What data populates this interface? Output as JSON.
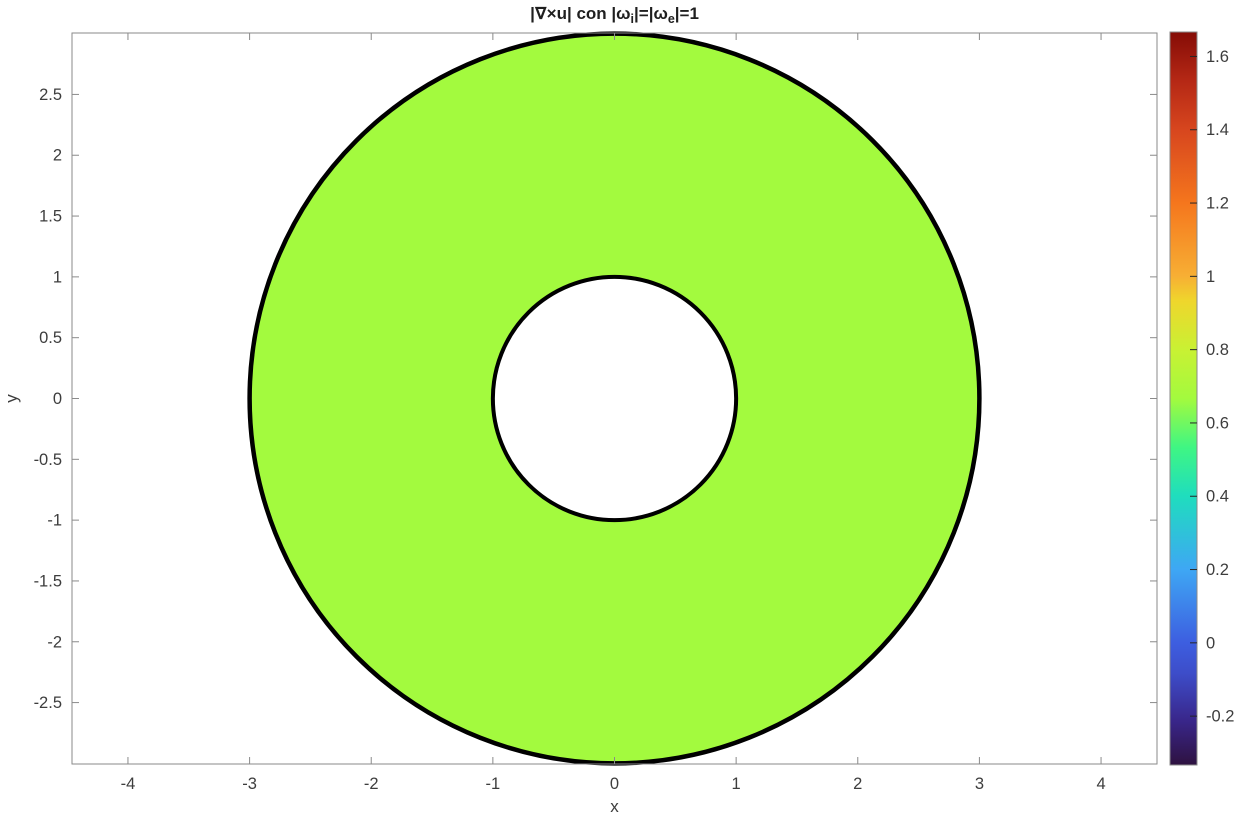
{
  "figure": {
    "background": "#FFFFFF"
  },
  "chart_data": {
    "type": "heatmap",
    "title": "|∇×u|  con  |ω_i|=|ω_e|=1",
    "title_segments": [
      {
        "t": "|∇×u|  con  |ω"
      },
      {
        "sub": "i"
      },
      {
        "t": "|=|ω"
      },
      {
        "sub": "e"
      },
      {
        "t": "|=1"
      }
    ],
    "xlabel": "x",
    "ylabel": "y",
    "xlim": [
      -4.46,
      4.46
    ],
    "ylim": [
      -3.005,
      3.005
    ],
    "x_ticks": [
      -4,
      -3,
      -2,
      -1,
      0,
      1,
      2,
      3,
      4
    ],
    "y_ticks": [
      -2.5,
      -2,
      -1.5,
      -1,
      -0.5,
      0,
      0.5,
      1,
      1.5,
      2,
      2.5
    ],
    "grid": false,
    "region": {
      "shape": "annulus",
      "center": [
        0,
        0
      ],
      "inner_radius": 1,
      "outer_radius": 3,
      "value": 0.667,
      "fill": "#A3FA3E",
      "edge": "#000000"
    },
    "colorbar": {
      "colormap": "turbo",
      "min": -0.3333,
      "max": 1.6667,
      "ticks": [
        -0.2,
        0,
        0.2,
        0.4,
        0.6,
        0.8,
        1,
        1.2,
        1.4,
        1.6
      ],
      "stops": [
        {
          "offset": 0.0,
          "color": "#2E1240"
        },
        {
          "offset": 0.06,
          "color": "#39268A"
        },
        {
          "offset": 0.125,
          "color": "#3D4DC9"
        },
        {
          "offset": 0.1667,
          "color": "#3D5EE0"
        },
        {
          "offset": 0.2667,
          "color": "#3EA7F4"
        },
        {
          "offset": 0.3667,
          "color": "#1FDDBE"
        },
        {
          "offset": 0.4333,
          "color": "#3FF683"
        },
        {
          "offset": 0.5,
          "color": "#A3FA3E"
        },
        {
          "offset": 0.5667,
          "color": "#C9F133"
        },
        {
          "offset": 0.6333,
          "color": "#EFD62C"
        },
        {
          "offset": 0.6667,
          "color": "#F7AF34"
        },
        {
          "offset": 0.7667,
          "color": "#F5761D"
        },
        {
          "offset": 0.8667,
          "color": "#D7461E"
        },
        {
          "offset": 0.9333,
          "color": "#B52815"
        },
        {
          "offset": 1.0,
          "color": "#850C06"
        }
      ]
    },
    "colors": {
      "frame": "#8A8A8A",
      "tick": "#8A8A8A",
      "label": "#3D3D3D",
      "title": "#1F1F1F",
      "colorbar_tick": "#262626"
    }
  }
}
